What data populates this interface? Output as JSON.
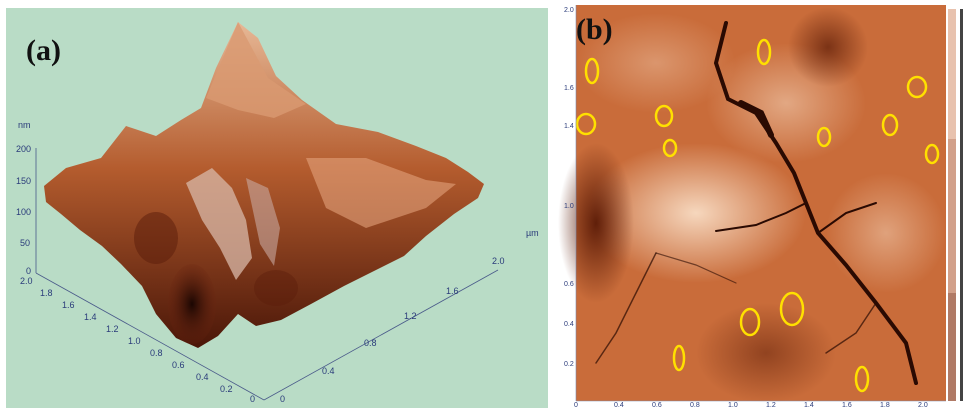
{
  "figure": {
    "panel_a": {
      "label": "(a)",
      "z_unit": "nm",
      "z_ticks": [
        "200",
        "150",
        "100",
        "50",
        "0"
      ],
      "y_ticks": [
        "2.0",
        "1.8",
        "1.6",
        "1.4",
        "1.2",
        "1.0",
        "0.8",
        "0.6",
        "0.4",
        "0.2",
        "0"
      ],
      "x_unit": "µm",
      "x_ticks": [
        "2.0",
        "1.6",
        "1.2",
        "0.8",
        "0.4",
        "0"
      ],
      "colors": {
        "background": "#b9dcc6",
        "surface_dark": "#3a1206",
        "surface_mid": "#a8481f",
        "surface_light": "#e7b896",
        "axis": "#2a3b7a"
      }
    },
    "panel_b": {
      "label": "(b)",
      "y_ticks": [
        "2.0",
        "1.6",
        "1.4",
        "1.0",
        "0.6",
        "0.4",
        "0.2"
      ],
      "x_ticks": [
        "0",
        "0.4",
        "0.6",
        "0.8",
        "1.0",
        "1.2",
        "1.4",
        "1.6",
        "1.8",
        "2.0"
      ],
      "colors": {
        "surface_dark": "#2a0a02",
        "surface_mid": "#c96c3a",
        "surface_light": "#fbe3cc",
        "marker": "#ffe000",
        "scale_bar": "#d2a08a"
      }
    }
  }
}
